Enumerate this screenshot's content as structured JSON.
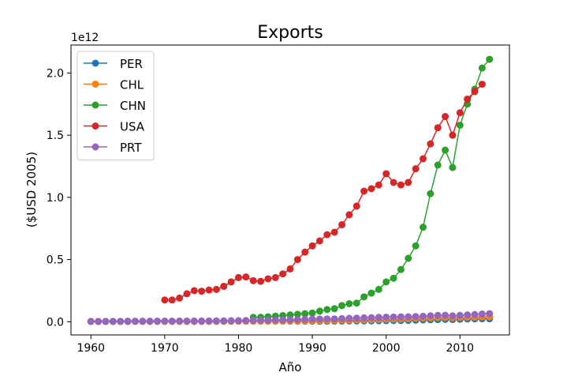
{
  "chart_data": {
    "type": "line",
    "title": "Exports",
    "xlabel": "Año",
    "ylabel": "($USD 2005)",
    "y_offset_label": "1e12",
    "xlim": [
      1957.3,
      2016.7
    ],
    "ylim": [
      -0.106,
      2.225
    ],
    "x_ticks": [
      1960,
      1970,
      1980,
      1990,
      2000,
      2010
    ],
    "x_tick_labels": [
      "1960",
      "1970",
      "1980",
      "1990",
      "2000",
      "2010"
    ],
    "y_ticks": [
      0.0,
      0.5,
      1.0,
      1.5,
      2.0
    ],
    "y_tick_labels": [
      "0.0",
      "0.5",
      "1.0",
      "1.5",
      "2.0"
    ],
    "legend_position": "upper-left",
    "grid": false,
    "series": [
      {
        "name": "PER",
        "color": "#1f77b4",
        "x": [
          1960,
          1961,
          1962,
          1963,
          1964,
          1965,
          1966,
          1967,
          1968,
          1969,
          1970,
          1971,
          1972,
          1973,
          1974,
          1975,
          1976,
          1977,
          1978,
          1979,
          1980,
          1981,
          1982,
          1983,
          1984,
          1985,
          1986,
          1987,
          1988,
          1989,
          1990,
          1991,
          1992,
          1993,
          1994,
          1995,
          1996,
          1997,
          1998,
          1999,
          2000,
          2001,
          2002,
          2003,
          2004,
          2005,
          2006,
          2007,
          2008,
          2009,
          2010,
          2011,
          2012,
          2013,
          2014
        ],
        "y": [
          0.002,
          0.002,
          0.002,
          0.002,
          0.002,
          0.003,
          0.003,
          0.003,
          0.003,
          0.003,
          0.003,
          0.003,
          0.003,
          0.003,
          0.003,
          0.003,
          0.003,
          0.003,
          0.004,
          0.004,
          0.004,
          0.004,
          0.004,
          0.004,
          0.004,
          0.004,
          0.004,
          0.004,
          0.004,
          0.004,
          0.004,
          0.004,
          0.004,
          0.005,
          0.005,
          0.006,
          0.006,
          0.007,
          0.007,
          0.008,
          0.009,
          0.01,
          0.01,
          0.011,
          0.013,
          0.015,
          0.016,
          0.017,
          0.019,
          0.018,
          0.02,
          0.022,
          0.023,
          0.024,
          0.024
        ]
      },
      {
        "name": "CHL",
        "color": "#ff7f0e",
        "x": [
          1960,
          1961,
          1962,
          1963,
          1964,
          1965,
          1966,
          1967,
          1968,
          1969,
          1970,
          1971,
          1972,
          1973,
          1974,
          1975,
          1976,
          1977,
          1978,
          1979,
          1980,
          1981,
          1982,
          1983,
          1984,
          1985,
          1986,
          1987,
          1988,
          1989,
          1990,
          1991,
          1992,
          1993,
          1994,
          1995,
          1996,
          1997,
          1998,
          1999,
          2000,
          2001,
          2002,
          2003,
          2004,
          2005,
          2006,
          2007,
          2008,
          2009,
          2010,
          2011,
          2012,
          2013,
          2014
        ],
        "y": [
          0.002,
          0.002,
          0.002,
          0.002,
          0.002,
          0.002,
          0.002,
          0.002,
          0.002,
          0.002,
          0.002,
          0.002,
          0.002,
          0.002,
          0.002,
          0.003,
          0.003,
          0.003,
          0.003,
          0.004,
          0.004,
          0.004,
          0.004,
          0.004,
          0.005,
          0.005,
          0.005,
          0.006,
          0.006,
          0.007,
          0.008,
          0.009,
          0.01,
          0.011,
          0.012,
          0.013,
          0.015,
          0.016,
          0.017,
          0.019,
          0.02,
          0.022,
          0.023,
          0.024,
          0.027,
          0.029,
          0.031,
          0.034,
          0.035,
          0.032,
          0.035,
          0.037,
          0.037,
          0.039,
          0.04
        ]
      },
      {
        "name": "CHN",
        "color": "#2ca02c",
        "x": [
          1982,
          1983,
          1984,
          1985,
          1986,
          1987,
          1988,
          1989,
          1990,
          1991,
          1992,
          1993,
          1994,
          1995,
          1996,
          1997,
          1998,
          1999,
          2000,
          2001,
          2002,
          2003,
          2004,
          2005,
          2006,
          2007,
          2008,
          2009,
          2010,
          2011,
          2012,
          2013,
          2014
        ],
        "y": [
          0.035,
          0.036,
          0.04,
          0.045,
          0.05,
          0.055,
          0.06,
          0.065,
          0.07,
          0.085,
          0.098,
          0.105,
          0.13,
          0.145,
          0.15,
          0.2,
          0.23,
          0.26,
          0.32,
          0.35,
          0.42,
          0.51,
          0.61,
          0.76,
          1.03,
          1.26,
          1.38,
          1.24,
          1.58,
          1.75,
          1.87,
          2.04,
          2.11
        ]
      },
      {
        "name": "USA",
        "color": "#d62728",
        "x": [
          1970,
          1971,
          1972,
          1973,
          1974,
          1975,
          1976,
          1977,
          1978,
          1979,
          1980,
          1981,
          1982,
          1983,
          1984,
          1985,
          1986,
          1987,
          1988,
          1989,
          1990,
          1991,
          1992,
          1993,
          1994,
          1995,
          1996,
          1997,
          1998,
          1999,
          2000,
          2001,
          2002,
          2003,
          2004,
          2005,
          2006,
          2007,
          2008,
          2009,
          2010,
          2011,
          2012,
          2013
        ],
        "y": [
          0.175,
          0.175,
          0.19,
          0.225,
          0.25,
          0.245,
          0.255,
          0.26,
          0.285,
          0.32,
          0.355,
          0.36,
          0.33,
          0.325,
          0.345,
          0.355,
          0.385,
          0.425,
          0.5,
          0.56,
          0.61,
          0.65,
          0.7,
          0.72,
          0.78,
          0.86,
          0.93,
          1.05,
          1.07,
          1.1,
          1.19,
          1.12,
          1.1,
          1.12,
          1.23,
          1.31,
          1.43,
          1.56,
          1.65,
          1.5,
          1.68,
          1.79,
          1.85,
          1.91
        ]
      },
      {
        "name": "PRT",
        "color": "#9467bd",
        "x": [
          1960,
          1961,
          1962,
          1963,
          1964,
          1965,
          1966,
          1967,
          1968,
          1969,
          1970,
          1971,
          1972,
          1973,
          1974,
          1975,
          1976,
          1977,
          1978,
          1979,
          1980,
          1981,
          1982,
          1983,
          1984,
          1985,
          1986,
          1987,
          1988,
          1989,
          1990,
          1991,
          1992,
          1993,
          1994,
          1995,
          1996,
          1997,
          1998,
          1999,
          2000,
          2001,
          2002,
          2003,
          2004,
          2005,
          2006,
          2007,
          2008,
          2009,
          2010,
          2011,
          2012,
          2013,
          2014
        ],
        "y": [
          0.002,
          0.002,
          0.003,
          0.003,
          0.003,
          0.004,
          0.004,
          0.004,
          0.005,
          0.005,
          0.005,
          0.005,
          0.006,
          0.006,
          0.006,
          0.006,
          0.006,
          0.007,
          0.007,
          0.008,
          0.009,
          0.01,
          0.011,
          0.012,
          0.013,
          0.014,
          0.015,
          0.016,
          0.017,
          0.019,
          0.021,
          0.022,
          0.023,
          0.023,
          0.025,
          0.027,
          0.029,
          0.031,
          0.033,
          0.035,
          0.037,
          0.038,
          0.039,
          0.04,
          0.042,
          0.044,
          0.048,
          0.051,
          0.052,
          0.047,
          0.051,
          0.055,
          0.058,
          0.062,
          0.065
        ]
      }
    ]
  }
}
